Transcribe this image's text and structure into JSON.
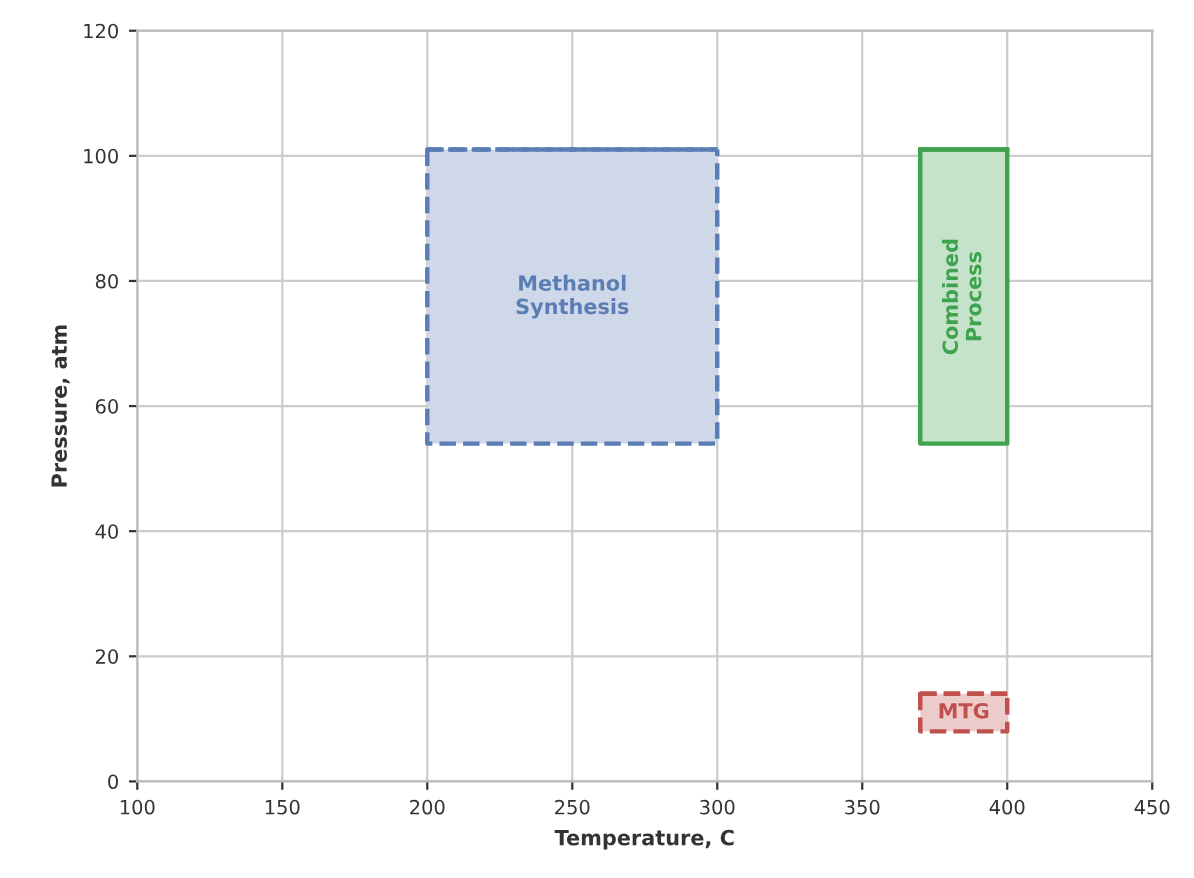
{
  "chart_data": {
    "type": "line",
    "xlabel": "Temperature, C",
    "ylabel": "Pressure, atm",
    "xlim": [
      100,
      450
    ],
    "xticks": [
      100,
      150,
      200,
      250,
      300,
      350,
      400,
      450
    ],
    "ylim": [
      0,
      120
    ],
    "yticks": [
      0,
      20,
      40,
      60,
      80,
      100,
      120
    ],
    "grid": true,
    "legend": false,
    "series": [
      {
        "name": "Methanol\nSynthesis",
        "color": "#5b7db5",
        "x": [
          200,
          300
        ],
        "values": [
          101,
          101
        ],
        "lower": [
          54,
          54
        ],
        "upper": [
          101,
          101
        ],
        "line_style": "dashed"
      },
      {
        "name": "Combined\nProcess",
        "color": "#3fa34d",
        "x": [
          370,
          400
        ],
        "values": [
          101,
          101
        ],
        "lower": [
          54,
          54
        ],
        "upper": [
          101,
          101
        ],
        "line_style": "solid"
      },
      {
        "name": "MTG",
        "color": "#c0504d",
        "x": [
          370,
          400
        ],
        "values": [
          14,
          14
        ],
        "lower": [
          8,
          8
        ],
        "upper": [
          14,
          14
        ],
        "line_style": "dashed"
      }
    ]
  }
}
